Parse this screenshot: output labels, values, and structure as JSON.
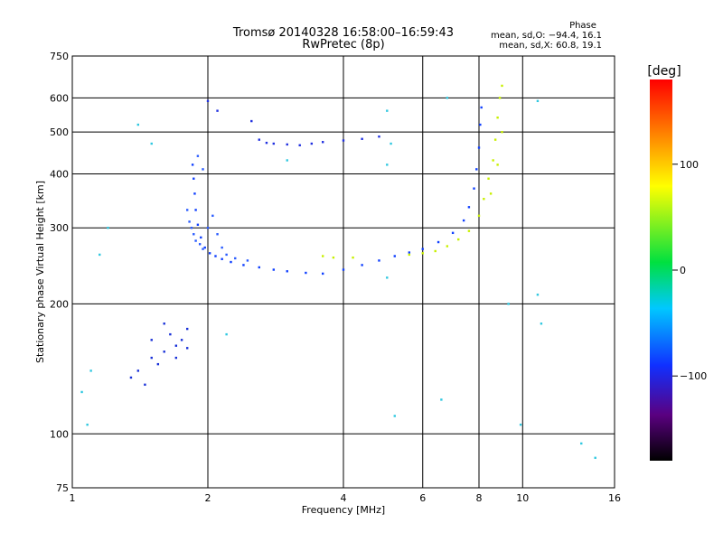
{
  "title": "Tromsø 20140328 16:58:00–16:59:43",
  "subtitle": "RwPretec (8p)",
  "phase_info": {
    "heading": "Phase",
    "line_o": "mean, sd,O: −94.4, 16.1",
    "line_x": "mean, sd,X: 60.8, 19.1"
  },
  "colorbar": {
    "label": "[deg]",
    "ticks": [
      "100",
      "0",
      "−100"
    ],
    "tick_values": [
      100,
      0,
      -100
    ],
    "range": [
      -180,
      180
    ]
  },
  "chart_data": {
    "type": "scatter",
    "xlabel": "Frequency [MHz]",
    "ylabel": "Stationary phase Virtual Height [km]",
    "xscale": "log",
    "yscale": "log",
    "xlim": [
      1,
      16
    ],
    "ylim": [
      75,
      750
    ],
    "grid": true,
    "xticks": [
      1,
      2,
      4,
      6,
      8,
      10,
      16
    ],
    "xtick_labels": [
      "1",
      "2",
      "4",
      "6",
      "8",
      "10",
      "16"
    ],
    "yticks": [
      75,
      100,
      200,
      300,
      400,
      500,
      600,
      750
    ],
    "ytick_labels": [
      "75",
      "100",
      "200",
      "300",
      "400",
      "500",
      "600",
      "750"
    ],
    "series": [
      {
        "trace": "o_mode_low",
        "phase_deg": -95,
        "color": "#1040ff",
        "points": [
          [
            1.85,
            420
          ],
          [
            1.86,
            390
          ],
          [
            1.87,
            360
          ],
          [
            1.88,
            330
          ],
          [
            1.9,
            305
          ],
          [
            1.93,
            285
          ],
          [
            1.97,
            270
          ],
          [
            2.02,
            262
          ],
          [
            2.08,
            258
          ],
          [
            2.15,
            254
          ],
          [
            2.25,
            250
          ],
          [
            2.4,
            246
          ],
          [
            2.6,
            243
          ],
          [
            2.8,
            240
          ],
          [
            3.0,
            238
          ],
          [
            3.3,
            236
          ],
          [
            3.6,
            235
          ],
          [
            4.0,
            240
          ],
          [
            4.4,
            246
          ],
          [
            4.8,
            252
          ],
          [
            5.2,
            258
          ],
          [
            5.6,
            263
          ],
          [
            6.0,
            268
          ],
          [
            6.5,
            278
          ],
          [
            7.0,
            292
          ],
          [
            7.4,
            312
          ],
          [
            7.6,
            335
          ],
          [
            7.8,
            370
          ],
          [
            7.9,
            410
          ],
          [
            8.0,
            460
          ],
          [
            8.05,
            520
          ],
          [
            8.1,
            570
          ]
        ]
      },
      {
        "trace": "o_mode_spread_2mhz",
        "phase_deg": -90,
        "color": "#2a5cff",
        "points": [
          [
            1.8,
            330
          ],
          [
            1.82,
            310
          ],
          [
            1.84,
            300
          ],
          [
            1.86,
            290
          ],
          [
            1.88,
            280
          ],
          [
            1.92,
            275
          ],
          [
            1.95,
            268
          ],
          [
            2.0,
            300
          ],
          [
            2.05,
            320
          ],
          [
            2.1,
            290
          ],
          [
            2.15,
            270
          ],
          [
            2.2,
            260
          ],
          [
            2.3,
            255
          ],
          [
            2.45,
            252
          ],
          [
            1.9,
            440
          ],
          [
            1.95,
            410
          ]
        ]
      },
      {
        "trace": "o_mode_upper",
        "phase_deg": -100,
        "color": "#2030e0",
        "points": [
          [
            2.6,
            480
          ],
          [
            2.7,
            472
          ],
          [
            2.8,
            470
          ],
          [
            3.0,
            468
          ],
          [
            3.2,
            466
          ],
          [
            3.4,
            470
          ],
          [
            3.6,
            474
          ],
          [
            4.0,
            478
          ],
          [
            4.4,
            482
          ],
          [
            4.8,
            488
          ],
          [
            2.0,
            590
          ],
          [
            2.1,
            560
          ],
          [
            2.5,
            530
          ]
        ]
      },
      {
        "trace": "es_spread",
        "phase_deg": -110,
        "color": "#1830d8",
        "points": [
          [
            1.35,
            135
          ],
          [
            1.4,
            140
          ],
          [
            1.5,
            150
          ],
          [
            1.6,
            155
          ],
          [
            1.7,
            160
          ],
          [
            1.75,
            165
          ],
          [
            1.8,
            158
          ],
          [
            1.65,
            170
          ],
          [
            1.55,
            145
          ],
          [
            1.45,
            130
          ],
          [
            1.7,
            150
          ],
          [
            1.8,
            175
          ],
          [
            1.5,
            165
          ],
          [
            1.6,
            180
          ]
        ]
      },
      {
        "trace": "x_mode",
        "phase_deg": 60,
        "color": "#c8f000",
        "points": [
          [
            3.6,
            258
          ],
          [
            3.8,
            256
          ],
          [
            4.2,
            256
          ],
          [
            5.6,
            260
          ],
          [
            6.0,
            262
          ],
          [
            6.4,
            265
          ],
          [
            6.8,
            272
          ],
          [
            7.2,
            282
          ],
          [
            7.6,
            295
          ],
          [
            8.0,
            320
          ],
          [
            8.2,
            350
          ],
          [
            8.4,
            390
          ],
          [
            8.6,
            430
          ],
          [
            8.7,
            480
          ],
          [
            8.8,
            540
          ],
          [
            8.9,
            600
          ],
          [
            9.0,
            640
          ],
          [
            8.5,
            360
          ],
          [
            8.8,
            420
          ],
          [
            9.0,
            500
          ]
        ]
      },
      {
        "trace": "scattered_noise",
        "phase_deg": 0,
        "color": "#30c8e0",
        "points": [
          [
            1.05,
            125
          ],
          [
            1.08,
            105
          ],
          [
            1.1,
            140
          ],
          [
            1.15,
            260
          ],
          [
            1.2,
            300
          ],
          [
            1.4,
            520
          ],
          [
            1.5,
            470
          ],
          [
            5.0,
            230
          ],
          [
            5.0,
            420
          ],
          [
            5.0,
            560
          ],
          [
            5.1,
            470
          ],
          [
            5.2,
            110
          ],
          [
            10.8,
            210
          ],
          [
            10.8,
            590
          ],
          [
            11,
            180
          ],
          [
            13.5,
            95
          ],
          [
            14.5,
            88
          ],
          [
            3.0,
            430
          ],
          [
            2.2,
            170
          ],
          [
            6.6,
            120
          ],
          [
            6.8,
            600
          ],
          [
            9.3,
            200
          ],
          [
            9.9,
            105
          ]
        ]
      }
    ]
  }
}
